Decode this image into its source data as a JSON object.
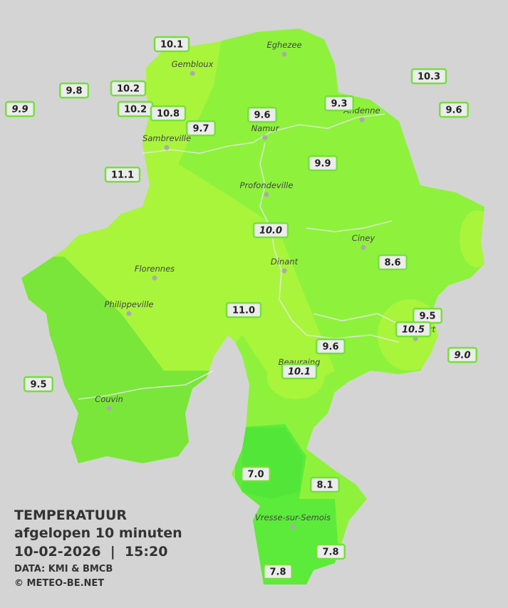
{
  "map": {
    "stations": [
      "10.1",
      "9.8",
      "10.2",
      "9.9",
      "10.2",
      "10.8",
      "9.7",
      "9.6",
      "9.3",
      "10.3",
      "9.6",
      "11.1",
      "9.9",
      "10.0",
      "8.6",
      "11.0",
      "9.5",
      "10.5",
      "9.0",
      "9.6",
      "10.1",
      "9.5",
      "7.0",
      "8.1",
      "7.8",
      "7.8"
    ],
    "cities": [
      "Eghezee",
      "Gembloux",
      "Andenne",
      "Namur",
      "Sambreville",
      "Profondeville",
      "Ciney",
      "Dinant",
      "Florennes",
      "Philippeville",
      "Rochefort",
      "Beauraing",
      "Couvin",
      "Vresse-sur-Semois"
    ]
  },
  "legend": {
    "title": "TEMPERATUUR",
    "subtitle": "afgelopen 10 minuten",
    "datetime": "10-02-2026  |  15:20",
    "source": "DATA: KMI & BMCB",
    "copyright": "© METEO-BE.NET"
  }
}
